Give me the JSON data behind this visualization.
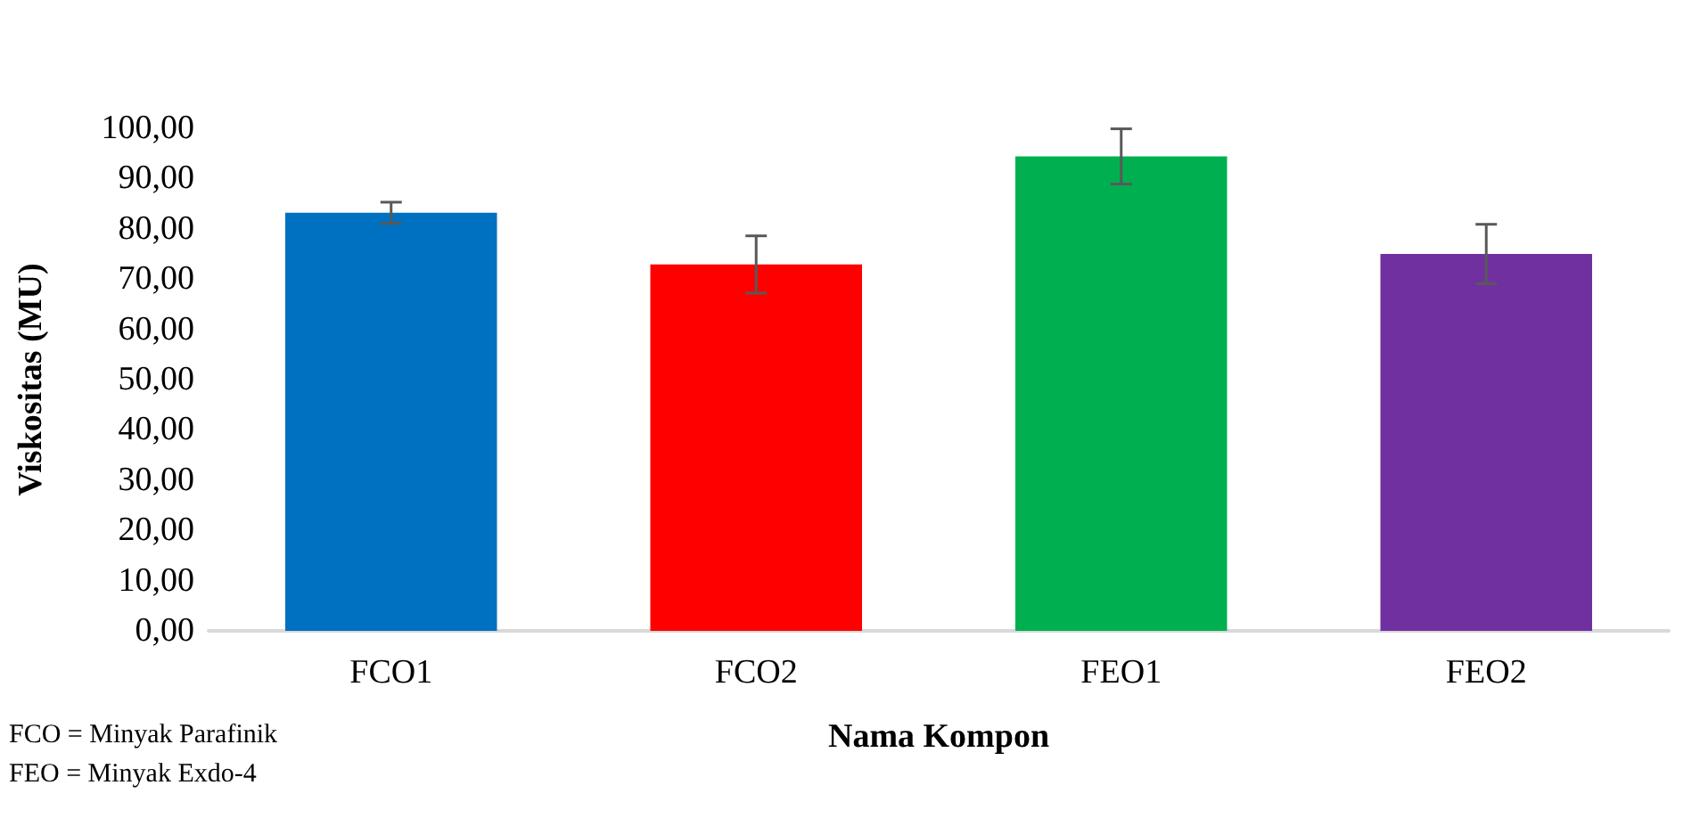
{
  "chart_data": {
    "type": "bar",
    "xlabel": "Nama Kompon",
    "ylabel": "Viskositas (MU)",
    "categories": [
      "FCO1",
      "FCO2",
      "FEO1",
      "FEO2"
    ],
    "values": [
      83.2,
      72.9,
      94.4,
      75.0
    ],
    "errors": [
      2.1,
      5.7,
      5.5,
      5.9
    ],
    "colors": [
      "#0070c0",
      "#ff0000",
      "#00b050",
      "#7030a0"
    ],
    "ylim": [
      0,
      100
    ],
    "yticks": [
      {
        "value": 0,
        "label": "0,00"
      },
      {
        "value": 10,
        "label": "10,00"
      },
      {
        "value": 20,
        "label": "20,00"
      },
      {
        "value": 30,
        "label": "30,00"
      },
      {
        "value": 40,
        "label": "40,00"
      },
      {
        "value": 50,
        "label": "50,00"
      },
      {
        "value": 60,
        "label": "60,00"
      },
      {
        "value": 70,
        "label": "70,00"
      },
      {
        "value": 80,
        "label": "80,00"
      },
      {
        "value": 90,
        "label": "90,00"
      },
      {
        "value": 100,
        "label": "100,00"
      }
    ],
    "annotations": [
      "FCO = Minyak Parafinik",
      "FEO = Minyak Exdo-4"
    ],
    "grid": false
  }
}
